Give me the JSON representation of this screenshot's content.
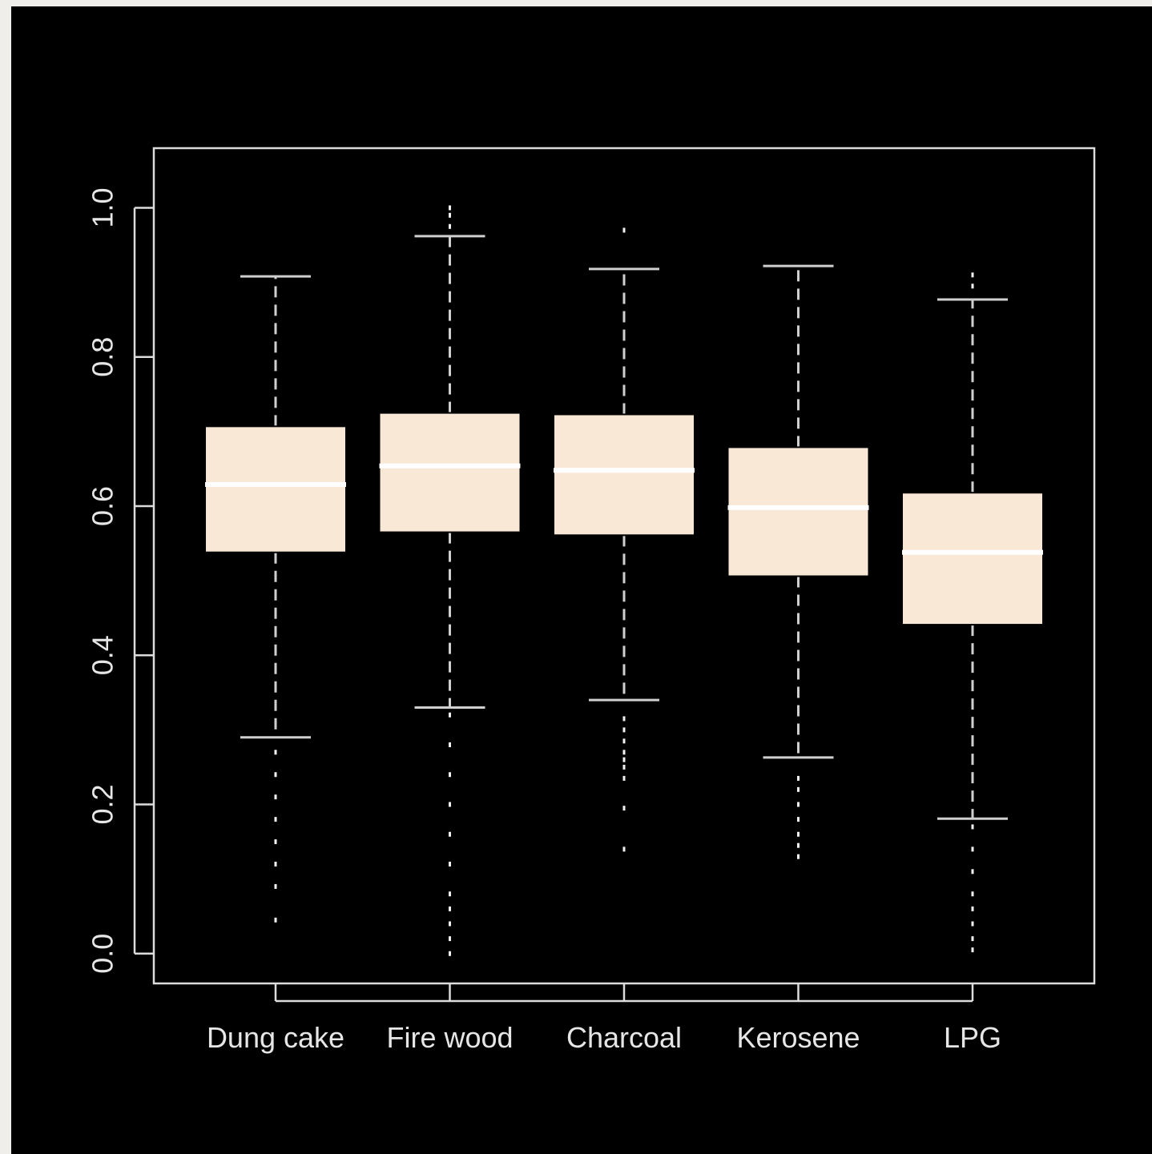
{
  "chart_data": {
    "type": "boxplot",
    "title": "",
    "xlabel": "",
    "ylabel": "",
    "ylim": [
      -0.04,
      1.08
    ],
    "yticks": [
      "0.0",
      "0.2",
      "0.4",
      "0.6",
      "0.8",
      "1.0"
    ],
    "categories": [
      "Dung cake",
      "Fire wood",
      "Charcoal",
      "Kerosene",
      "LPG"
    ],
    "boxes": [
      {
        "category": "Dung cake",
        "whisker_low": 0.29,
        "q1": 0.538,
        "median": 0.629,
        "q3": 0.707,
        "whisker_high": 0.908,
        "outliers": [
          0.27,
          0.24,
          0.21,
          0.18,
          0.15,
          0.12,
          0.09,
          0.045
        ]
      },
      {
        "category": "Fire wood",
        "whisker_low": 0.33,
        "q1": 0.565,
        "median": 0.654,
        "q3": 0.725,
        "whisker_high": 0.962,
        "outliers": [
          0.975,
          0.99,
          1.0,
          0.32,
          0.28,
          0.24,
          0.2,
          0.16,
          0.12,
          0.08,
          0.06,
          0.04,
          0.02,
          0.0
        ]
      },
      {
        "category": "Charcoal",
        "whisker_low": 0.34,
        "q1": 0.561,
        "median": 0.648,
        "q3": 0.723,
        "whisker_high": 0.918,
        "outliers": [
          0.97,
          0.315,
          0.3,
          0.285,
          0.27,
          0.26,
          0.25,
          0.235,
          0.195,
          0.14
        ]
      },
      {
        "category": "Kerosene",
        "whisker_low": 0.263,
        "q1": 0.506,
        "median": 0.598,
        "q3": 0.679,
        "whisker_high": 0.922,
        "outliers": [
          0.235,
          0.22,
          0.2,
          0.18,
          0.16,
          0.145,
          0.13
        ]
      },
      {
        "category": "LPG",
        "whisker_low": 0.181,
        "q1": 0.441,
        "median": 0.538,
        "q3": 0.618,
        "whisker_high": 0.877,
        "outliers": [
          0.91,
          0.895,
          0.17,
          0.14,
          0.11,
          0.08,
          0.06,
          0.04,
          0.02,
          0.005
        ]
      }
    ],
    "colors": {
      "background": "#000000",
      "box_fill": "#fae8d6",
      "median_line": "#ffffff",
      "axis": "#dcdcdc",
      "whisker": "#cfcfcf"
    },
    "grid": false
  }
}
